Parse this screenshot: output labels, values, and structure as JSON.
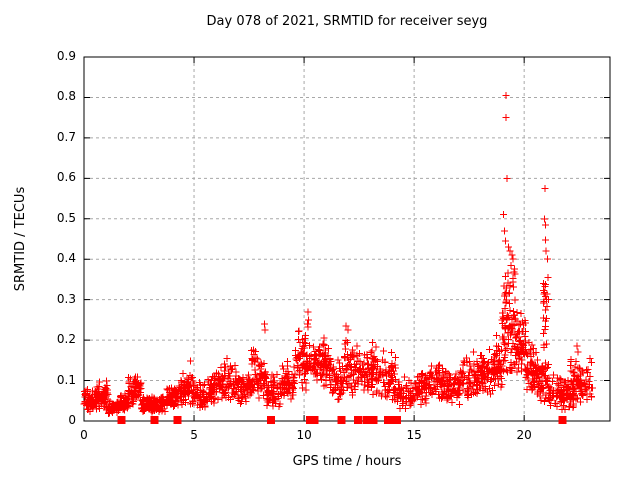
{
  "chart_data": {
    "type": "scatter",
    "title": "Day 078 of 2021, SRMTID for receiver seyg",
    "xlabel": "GPS time / hours",
    "ylabel": "SRMTID / TECUs",
    "xlim": [
      0,
      23.9
    ],
    "ylim": [
      0,
      0.9
    ],
    "xticks": [
      0,
      5,
      10,
      15,
      20
    ],
    "yticks": [
      0,
      0.1,
      0.2,
      0.3,
      0.4,
      0.5,
      0.6,
      0.7,
      0.8,
      0.9
    ],
    "grid": true,
    "legend": "none",
    "marker": {
      "shape": "plus",
      "color": "#ff0000",
      "size": 7
    },
    "colors": {
      "background": "#ffffff",
      "grid": "#a8a8a8",
      "axis": "#000000",
      "text": "#000000"
    },
    "series": [
      {
        "name": "SRMTID",
        "seed": 2021078,
        "encoding": "band_segments=[x0,x1,ymin,ymax,count] dense scatter envelope; outliers=[x,y] points; zero_runs=[x0,x1] clusters at y=0",
        "band_segments": [
          [
            0.0,
            0.6,
            0.02,
            0.085,
            60
          ],
          [
            0.6,
            1.1,
            0.025,
            0.1,
            55
          ],
          [
            1.1,
            1.6,
            0.015,
            0.055,
            50
          ],
          [
            1.6,
            2.0,
            0.025,
            0.07,
            45
          ],
          [
            2.0,
            2.6,
            0.035,
            0.12,
            60
          ],
          [
            2.6,
            3.1,
            0.02,
            0.065,
            50
          ],
          [
            3.1,
            3.7,
            0.02,
            0.07,
            55
          ],
          [
            3.7,
            4.3,
            0.03,
            0.09,
            55
          ],
          [
            4.3,
            5.0,
            0.035,
            0.13,
            65
          ],
          [
            5.0,
            5.6,
            0.03,
            0.1,
            55
          ],
          [
            5.6,
            6.2,
            0.04,
            0.13,
            60
          ],
          [
            6.2,
            7.0,
            0.04,
            0.15,
            70
          ],
          [
            7.0,
            7.6,
            0.04,
            0.12,
            55
          ],
          [
            7.6,
            8.3,
            0.05,
            0.19,
            65
          ],
          [
            8.3,
            9.0,
            0.03,
            0.12,
            60
          ],
          [
            9.0,
            9.6,
            0.05,
            0.15,
            55
          ],
          [
            9.6,
            10.3,
            0.07,
            0.24,
            65
          ],
          [
            10.3,
            11.2,
            0.08,
            0.22,
            85
          ],
          [
            11.2,
            11.8,
            0.05,
            0.16,
            50
          ],
          [
            11.8,
            12.6,
            0.06,
            0.21,
            70
          ],
          [
            12.6,
            13.3,
            0.06,
            0.2,
            65
          ],
          [
            13.3,
            14.2,
            0.04,
            0.18,
            70
          ],
          [
            14.2,
            15.0,
            0.03,
            0.11,
            60
          ],
          [
            15.0,
            15.7,
            0.04,
            0.13,
            60
          ],
          [
            15.7,
            16.4,
            0.05,
            0.15,
            60
          ],
          [
            16.4,
            17.1,
            0.04,
            0.13,
            60
          ],
          [
            17.1,
            17.9,
            0.05,
            0.17,
            65
          ],
          [
            17.9,
            18.6,
            0.06,
            0.18,
            65
          ],
          [
            18.6,
            19.0,
            0.07,
            0.22,
            50
          ],
          [
            19.0,
            19.6,
            0.1,
            0.4,
            95
          ],
          [
            19.6,
            20.1,
            0.09,
            0.3,
            60
          ],
          [
            20.1,
            20.6,
            0.06,
            0.2,
            55
          ],
          [
            20.6,
            21.1,
            0.04,
            0.16,
            50
          ],
          [
            20.85,
            21.05,
            0.16,
            0.38,
            22
          ],
          [
            21.1,
            21.7,
            0.03,
            0.12,
            50
          ],
          [
            21.7,
            22.3,
            0.02,
            0.12,
            55
          ],
          [
            22.1,
            22.7,
            0.04,
            0.17,
            55
          ],
          [
            22.7,
            23.1,
            0.04,
            0.15,
            22
          ]
        ],
        "outliers": [
          [
            19.18,
            0.805
          ],
          [
            19.18,
            0.75
          ],
          [
            19.22,
            0.6
          ],
          [
            19.05,
            0.51
          ],
          [
            19.1,
            0.47
          ],
          [
            19.15,
            0.445
          ],
          [
            19.28,
            0.43
          ],
          [
            19.35,
            0.42
          ],
          [
            19.45,
            0.41
          ],
          [
            19.5,
            0.4
          ],
          [
            19.4,
            0.385
          ],
          [
            20.95,
            0.575
          ],
          [
            20.93,
            0.5
          ],
          [
            20.97,
            0.485
          ],
          [
            20.96,
            0.447
          ],
          [
            21.0,
            0.42
          ],
          [
            21.05,
            0.4
          ],
          [
            21.08,
            0.355
          ],
          [
            21.1,
            0.3
          ],
          [
            10.18,
            0.27
          ],
          [
            10.21,
            0.25
          ],
          [
            10.15,
            0.24
          ],
          [
            8.2,
            0.24
          ],
          [
            8.23,
            0.225
          ],
          [
            11.9,
            0.235
          ],
          [
            12.0,
            0.225
          ],
          [
            4.85,
            0.148
          ],
          [
            6.5,
            0.155
          ],
          [
            17.7,
            0.17
          ],
          [
            22.4,
            0.185
          ],
          [
            22.45,
            0.17
          ],
          [
            23.0,
            0.155
          ]
        ],
        "zero_runs": [
          [
            1.62,
            1.74
          ],
          [
            3.12,
            3.24
          ],
          [
            4.15,
            4.28
          ],
          [
            8.4,
            8.55
          ],
          [
            10.18,
            10.65
          ],
          [
            11.62,
            11.78
          ],
          [
            12.35,
            12.5
          ],
          [
            12.75,
            13.35
          ],
          [
            13.72,
            13.88
          ],
          [
            13.95,
            14.1
          ],
          [
            14.12,
            14.28
          ],
          [
            21.65,
            21.8
          ]
        ]
      }
    ]
  }
}
